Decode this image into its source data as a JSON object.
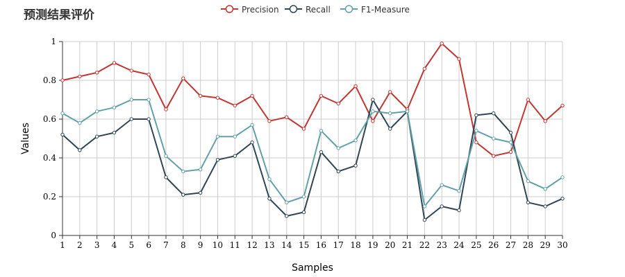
{
  "page_title": "预测结果评价",
  "chart_data": {
    "type": "line",
    "title": "预测结果评价",
    "xlabel": "Samples",
    "ylabel": "Values",
    "x": [
      1,
      2,
      3,
      4,
      5,
      6,
      7,
      8,
      9,
      10,
      11,
      12,
      13,
      14,
      15,
      16,
      17,
      18,
      19,
      20,
      21,
      22,
      23,
      24,
      25,
      26,
      27,
      28,
      29,
      30
    ],
    "ylim": [
      0,
      1
    ],
    "yticks": [
      "0",
      "0.2",
      "0.4",
      "0.6",
      "0.8",
      "1"
    ],
    "grid": true,
    "legend_position": "top-center",
    "series": [
      {
        "name": "Precision",
        "color": "#c23531",
        "values": [
          0.8,
          0.82,
          0.84,
          0.89,
          0.85,
          0.83,
          0.65,
          0.81,
          0.72,
          0.71,
          0.67,
          0.72,
          0.59,
          0.61,
          0.55,
          0.72,
          0.68,
          0.77,
          0.59,
          0.74,
          0.65,
          0.86,
          0.99,
          0.91,
          0.48,
          0.41,
          0.43,
          0.7,
          0.59,
          0.67
        ]
      },
      {
        "name": "Recall",
        "color": "#2f4554",
        "values": [
          0.52,
          0.44,
          0.51,
          0.53,
          0.6,
          0.6,
          0.3,
          0.21,
          0.22,
          0.39,
          0.41,
          0.48,
          0.19,
          0.1,
          0.12,
          0.43,
          0.33,
          0.36,
          0.7,
          0.55,
          0.64,
          0.08,
          0.15,
          0.13,
          0.62,
          0.63,
          0.53,
          0.17,
          0.15,
          0.19
        ]
      },
      {
        "name": "F1-Measure",
        "color": "#61a0a8",
        "values": [
          0.63,
          0.58,
          0.64,
          0.66,
          0.7,
          0.7,
          0.41,
          0.33,
          0.34,
          0.51,
          0.51,
          0.57,
          0.29,
          0.17,
          0.2,
          0.54,
          0.45,
          0.49,
          0.64,
          0.63,
          0.64,
          0.15,
          0.26,
          0.23,
          0.54,
          0.5,
          0.48,
          0.28,
          0.24,
          0.3
        ]
      }
    ]
  }
}
